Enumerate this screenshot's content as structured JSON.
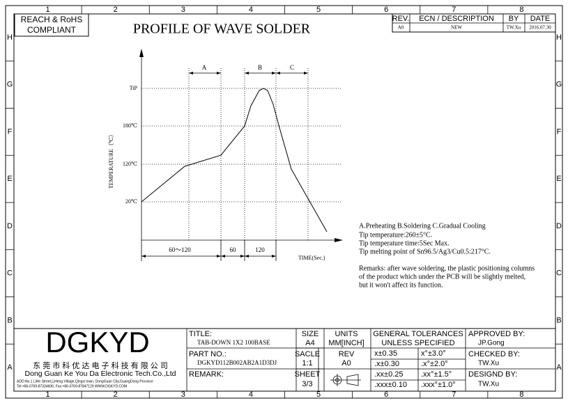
{
  "border": {
    "columns": [
      "1",
      "2",
      "3",
      "4",
      "5",
      "6",
      "7",
      "8"
    ],
    "rows": [
      "H",
      "G",
      "F",
      "E",
      "D",
      "C",
      "B",
      "A"
    ]
  },
  "compliance": [
    "REACH & RoHS",
    "COMPLIANT"
  ],
  "title": "PROFILE OF WAVE SOLDER",
  "revision": {
    "headers": [
      "REV.",
      "ECN / DESCRIPTION",
      "BY",
      "DATE"
    ],
    "row": [
      "A0",
      "NEW",
      "TW.Xu",
      "2016.07.30"
    ]
  },
  "profile": {
    "y_label": "TEMPERATURE（℃）",
    "y_levels": [
      "TiP",
      "180℃",
      "120℃",
      "20℃"
    ],
    "zones": [
      "A",
      "B",
      "C"
    ],
    "durations": [
      "60～120",
      "60",
      "120"
    ],
    "x_label": "TIME(Sec.)"
  },
  "notes": {
    "lines": [
      "A.Preheating  B.Soldering  C.Gradual Cooling",
      "Tip temperature:260±5°C.",
      "Tip temperature time:5Sec Max.",
      "Tip melting point of Sn96.5/Ag3/Cu0.5:217°C."
    ],
    "remark": [
      "Remarks: after wave soldering, the plastic positioning columns",
      "of the product  which under the PCB will be slightly melted,",
      "but it won't affect its function."
    ]
  },
  "title_block": {
    "logo": "DGKYD",
    "company_cn": "东 莞 市 科 优 达 电 子 科 技 有 限 公 司",
    "company_en": "Dong Guan Ke You Da Electronic Tech.Co.,Ltd",
    "address": "ADD:No.1 LiHe Street,LiHeng Village,Qingxi town, DongGuan City,GuangDong Province",
    "contact": "Tel:+86-0769-87334606; Fax:+86-0769-87847129  WWW.DGKYD.COM",
    "title_label": "TITLE:",
    "title_value": "TAB-DOWN 1X2 100BASE",
    "part_label": "PART NO.:",
    "part_value": "DGKYD112B002AB2A1D3DJ",
    "remark_label": "REMARK:",
    "size_label": "SIZE",
    "size_value": "A4",
    "units_label": "UNITS",
    "units_value": "MM[INCH]",
    "scale_label": "SACLE",
    "scale_value": "1:1",
    "rev_label": "REV",
    "rev_value": "A0",
    "sheet_label": "SHEET",
    "sheet_value": "3/3",
    "tolerance_header": [
      "GENERAL TOLERANCES",
      "UNLESS SPECIFIED"
    ],
    "tolerances": [
      [
        "x±0.35",
        "x°±3.0°"
      ],
      [
        ".x±0.30",
        ".x°±2.0°"
      ],
      [
        ".xx±0.25",
        ".xx°±1.5°"
      ],
      [
        ".xxx±0.10",
        ".xxx°±1.0°"
      ]
    ],
    "approved_label": "APPROVED BY:",
    "approved_value": "JP.Gong",
    "checked_label": "CHECKED BY:",
    "checked_value": "TW.Xu",
    "designed_label": "DESIGND BY:",
    "designed_value": "TW.Xu"
  }
}
